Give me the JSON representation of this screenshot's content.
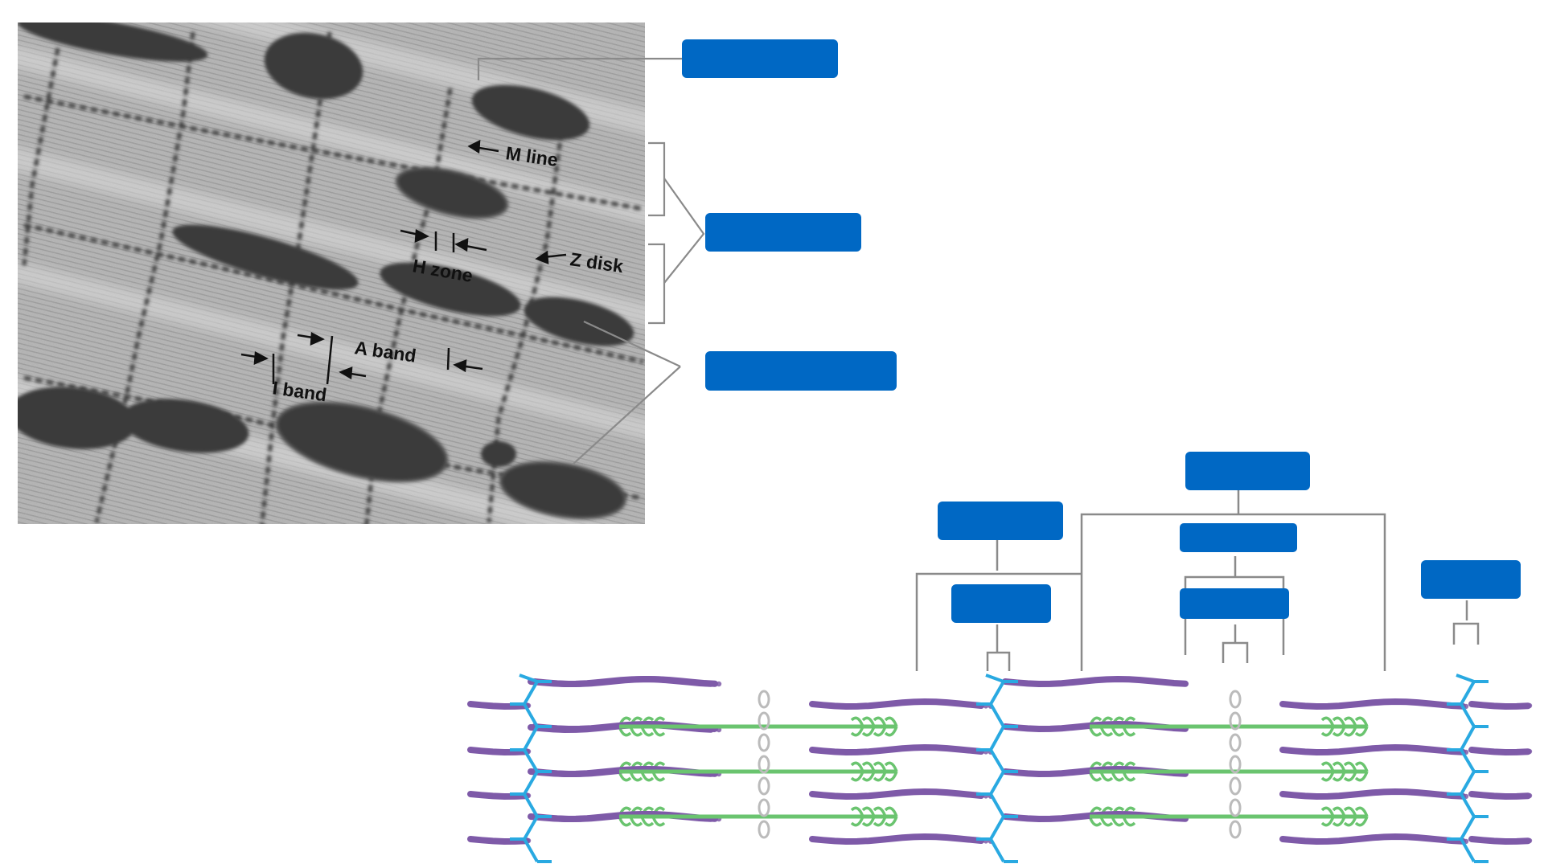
{
  "micrograph": {
    "labels": {
      "m_line": "M line",
      "h_zone": "H zone",
      "z_disk": "Z disk",
      "a_band": "A band",
      "i_band": "I band"
    }
  },
  "label_boxes": [
    {
      "id": "box-top-micrograph",
      "text": ""
    },
    {
      "id": "box-sarcomere",
      "text": ""
    },
    {
      "id": "box-mitochondria",
      "text": ""
    },
    {
      "id": "box-a-band",
      "text": ""
    },
    {
      "id": "box-i-band",
      "text": ""
    },
    {
      "id": "box-h-zone",
      "text": ""
    },
    {
      "id": "box-m-line",
      "text": ""
    },
    {
      "id": "box-thin-filament",
      "text": ""
    },
    {
      "id": "box-thick-filament",
      "text": ""
    },
    {
      "id": "box-z-disk",
      "text": ""
    }
  ],
  "colors": {
    "label_box": "#0068c4",
    "leader_line": "#8a8a8a",
    "actin": "#7e5aa8",
    "myosin": "#6ac46f",
    "z_disk": "#29a9e1",
    "m_line": "#bbbbbb",
    "micrograph_bg": "#b9b9b9"
  }
}
